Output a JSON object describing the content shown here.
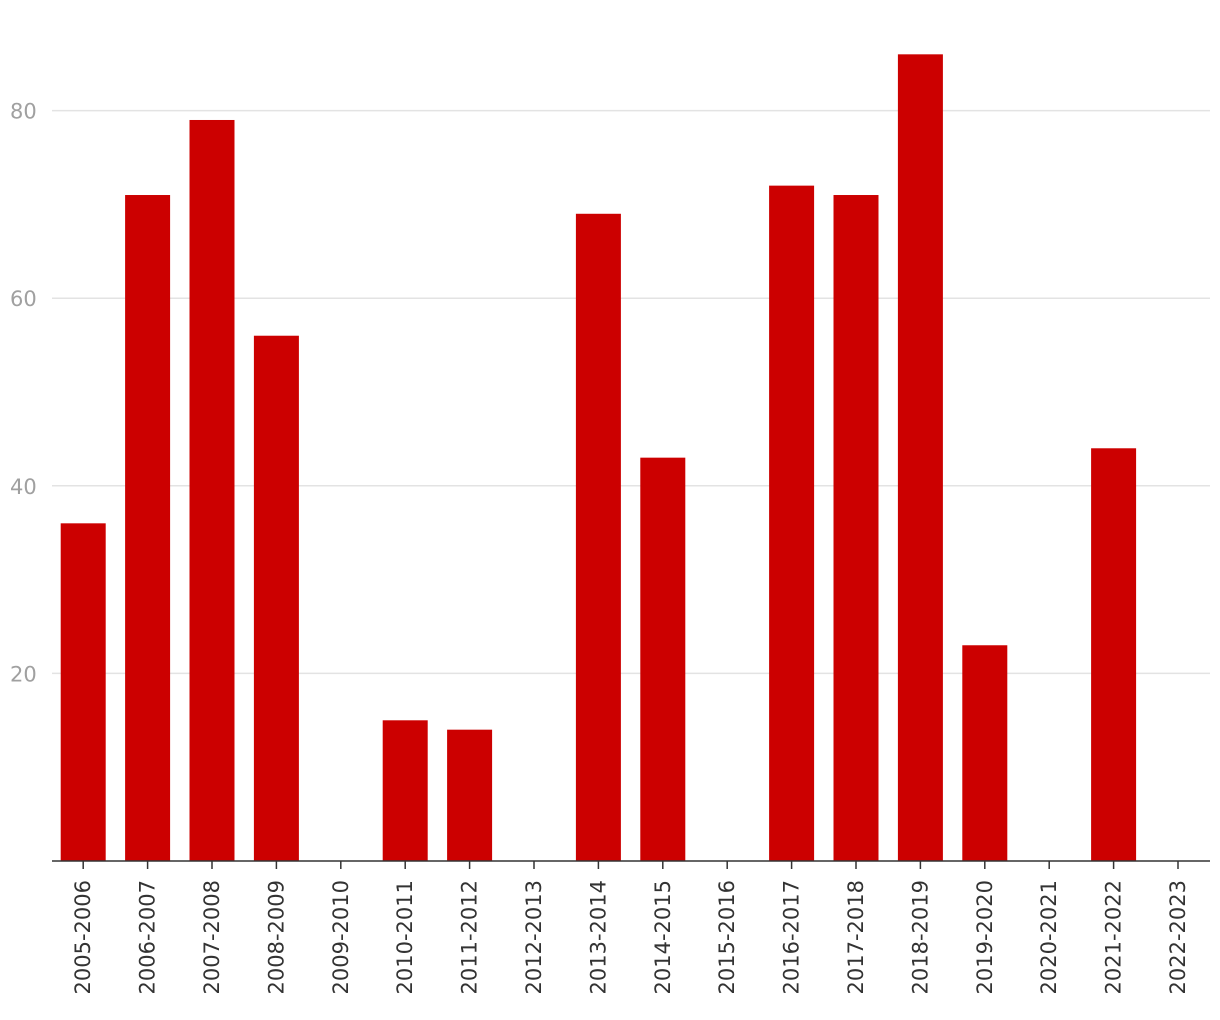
{
  "chart_data": {
    "type": "bar",
    "title": "",
    "xlabel": "",
    "ylabel": "",
    "categories": [
      "2005-2006",
      "2006-2007",
      "2007-2008",
      "2008-2009",
      "2009-2010",
      "2010-2011",
      "2011-2012",
      "2012-2013",
      "2013-2014",
      "2014-2015",
      "2015-2016",
      "2016-2017",
      "2017-2018",
      "2018-2019",
      "2019-2020",
      "2020-2021",
      "2021-2022",
      "2022-2023"
    ],
    "values": [
      36,
      71,
      79,
      56,
      0,
      15,
      14,
      0,
      69,
      43,
      0,
      72,
      71,
      86,
      23,
      0,
      44,
      0
    ],
    "ylim": [
      0,
      88
    ],
    "yticks": [
      20,
      40,
      60,
      80
    ],
    "grid": true,
    "legend": "none",
    "bar_color": "#cc0000"
  }
}
